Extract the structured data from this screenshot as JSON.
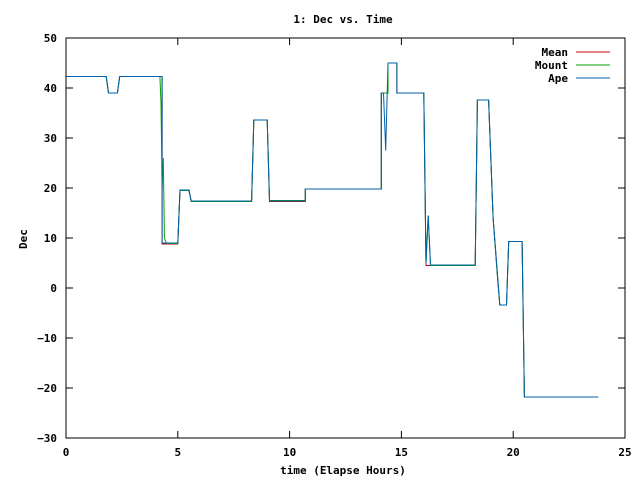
{
  "chart_data": {
    "type": "line",
    "title": "1: Dec vs. Time",
    "xlabel": "time (Elapse Hours)",
    "ylabel": "Dec",
    "xlim": [
      0,
      25
    ],
    "ylim": [
      -30,
      50
    ],
    "xticks": [
      0,
      5,
      10,
      15,
      20,
      25
    ],
    "yticks": [
      -30,
      -20,
      -10,
      0,
      10,
      20,
      30,
      40,
      50
    ],
    "grid": false,
    "legend_position": "top-right",
    "series": [
      {
        "name": "Mean",
        "color": "#d0000c",
        "points": [
          [
            0,
            42.3
          ],
          [
            1.8,
            42.3
          ],
          [
            1.9,
            39
          ],
          [
            2.3,
            39
          ],
          [
            2.4,
            42.3
          ],
          [
            4.3,
            42.3
          ],
          [
            4.3,
            8.8
          ],
          [
            5,
            8.8
          ],
          [
            5.1,
            19.6
          ],
          [
            5.5,
            19.6
          ],
          [
            5.6,
            17.3
          ],
          [
            8.3,
            17.3
          ],
          [
            8.4,
            33.6
          ],
          [
            9,
            33.6
          ],
          [
            9.1,
            17.3
          ],
          [
            10.7,
            17.3
          ],
          [
            10.7,
            19.8
          ],
          [
            14.1,
            19.8
          ],
          [
            14.1,
            39
          ],
          [
            14.4,
            39
          ],
          [
            14.4,
            45
          ],
          [
            14.8,
            45
          ],
          [
            14.8,
            39
          ],
          [
            16,
            39
          ],
          [
            16.1,
            4.5
          ],
          [
            18.3,
            4.5
          ],
          [
            18.4,
            37.6
          ],
          [
            18.9,
            37.6
          ],
          [
            19.1,
            14
          ],
          [
            19.4,
            -3.4
          ],
          [
            19.7,
            -3.4
          ],
          [
            19.8,
            9.3
          ],
          [
            20.4,
            9.3
          ],
          [
            20.5,
            -21.8
          ],
          [
            23.8,
            -21.8
          ]
        ]
      },
      {
        "name": "Mount",
        "color": "#00a000",
        "points": [
          [
            0,
            42.3
          ],
          [
            1.8,
            42.3
          ],
          [
            1.9,
            39
          ],
          [
            2.3,
            39
          ],
          [
            2.4,
            42.3
          ],
          [
            4.2,
            42.3
          ],
          [
            4.25,
            37
          ],
          [
            4.3,
            20
          ],
          [
            4.35,
            26
          ],
          [
            4.4,
            10
          ],
          [
            4.5,
            8.9
          ],
          [
            5,
            8.9
          ],
          [
            5.1,
            19.5
          ],
          [
            5.5,
            19.5
          ],
          [
            5.6,
            17.3
          ],
          [
            8.3,
            17.3
          ],
          [
            8.4,
            33.6
          ],
          [
            9,
            33.6
          ],
          [
            9.1,
            17.5
          ],
          [
            10.7,
            17.5
          ],
          [
            10.7,
            19.8
          ],
          [
            14.1,
            19.8
          ],
          [
            14.1,
            39
          ],
          [
            14.4,
            39
          ],
          [
            14.4,
            45
          ],
          [
            14.8,
            45
          ],
          [
            14.8,
            39
          ],
          [
            16,
            39
          ],
          [
            16.1,
            5
          ],
          [
            16.2,
            14.5
          ],
          [
            16.3,
            4.5
          ],
          [
            18.3,
            4.5
          ],
          [
            18.4,
            37.6
          ],
          [
            18.9,
            37.6
          ],
          [
            19.1,
            14
          ],
          [
            19.3,
            2
          ],
          [
            19.4,
            -3.4
          ],
          [
            19.7,
            -3.4
          ],
          [
            19.8,
            9.3
          ],
          [
            20.4,
            9.3
          ],
          [
            20.5,
            -21.8
          ],
          [
            23.8,
            -21.8
          ]
        ]
      },
      {
        "name": "Ape",
        "color": "#0060ad",
        "points": [
          [
            0,
            42.3
          ],
          [
            1.8,
            42.3
          ],
          [
            1.9,
            39
          ],
          [
            2.3,
            39
          ],
          [
            2.4,
            42.3
          ],
          [
            4.3,
            42.3
          ],
          [
            4.3,
            9
          ],
          [
            5,
            9
          ],
          [
            5.1,
            19.6
          ],
          [
            5.5,
            19.6
          ],
          [
            5.6,
            17.4
          ],
          [
            8.3,
            17.4
          ],
          [
            8.4,
            33.6
          ],
          [
            9,
            33.6
          ],
          [
            9.1,
            17.4
          ],
          [
            10.7,
            17.4
          ],
          [
            10.7,
            19.8
          ],
          [
            14.1,
            19.8
          ],
          [
            14.1,
            39
          ],
          [
            14.2,
            39
          ],
          [
            14.3,
            27.5
          ],
          [
            14.4,
            45
          ],
          [
            14.8,
            45
          ],
          [
            14.8,
            39
          ],
          [
            16,
            39
          ],
          [
            16.1,
            5
          ],
          [
            16.2,
            14.5
          ],
          [
            16.3,
            4.6
          ],
          [
            18.3,
            4.6
          ],
          [
            18.4,
            37.6
          ],
          [
            18.9,
            37.6
          ],
          [
            19.1,
            14
          ],
          [
            19.4,
            -3.4
          ],
          [
            19.7,
            -3.4
          ],
          [
            19.8,
            9.3
          ],
          [
            20.4,
            9.3
          ],
          [
            20.5,
            -21.8
          ],
          [
            23.8,
            -21.8
          ]
        ]
      }
    ]
  }
}
